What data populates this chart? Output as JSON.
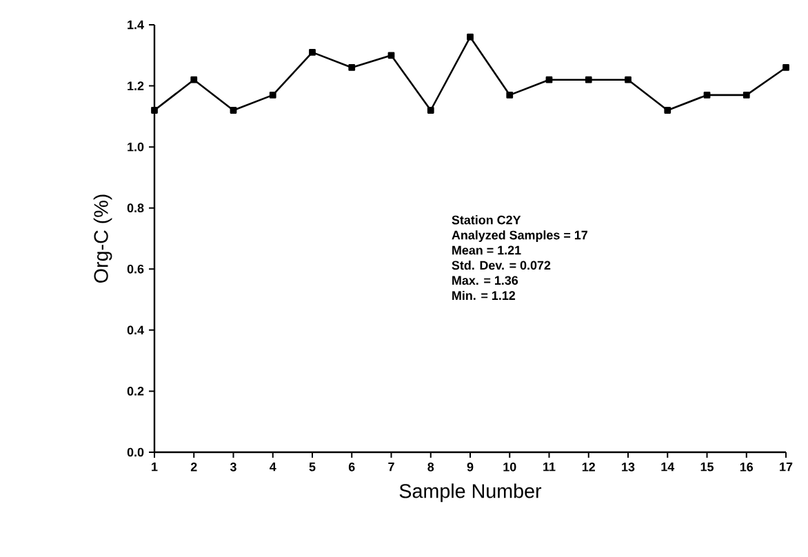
{
  "chart_data": {
    "type": "line",
    "xlabel": "Sample Number",
    "ylabel": "Org-C (%)",
    "x": [
      1,
      2,
      3,
      4,
      5,
      6,
      7,
      8,
      9,
      10,
      11,
      12,
      13,
      14,
      15,
      16,
      17
    ],
    "series": [
      {
        "color": "#000000",
        "values": [
          1.12,
          1.22,
          1.12,
          1.17,
          1.31,
          1.26,
          1.3,
          1.12,
          1.36,
          1.17,
          1.22,
          1.22,
          1.22,
          1.12,
          1.17,
          1.17,
          1.26
        ]
      }
    ],
    "xlim": [
      1,
      17
    ],
    "xticks": [
      1,
      2,
      3,
      4,
      5,
      6,
      7,
      8,
      9,
      10,
      11,
      12,
      13,
      14,
      15,
      16,
      17
    ],
    "ylim": [
      0,
      1.4
    ],
    "yticks": [
      {
        "value": 0,
        "label": "0.0"
      },
      {
        "value": 0.2,
        "label": "0.2"
      },
      {
        "value": 0.4,
        "label": "0.4"
      },
      {
        "value": 0.6,
        "label": "0.6"
      },
      {
        "value": 0.8,
        "label": "0.8"
      },
      {
        "value": 1.0,
        "label": "1.0"
      },
      {
        "value": 1.2,
        "label": "1.2"
      },
      {
        "value": 1.4,
        "label": "1.4"
      }
    ],
    "marker": "square",
    "line_style": "solid",
    "grid": false,
    "annotations": [
      "Station C2Y",
      "Analyzed Samples = 17",
      "Mean = 1.21",
      "Std. Dev. = 0.072",
      "Max. = 1.36",
      "Min. = 1.12"
    ]
  }
}
